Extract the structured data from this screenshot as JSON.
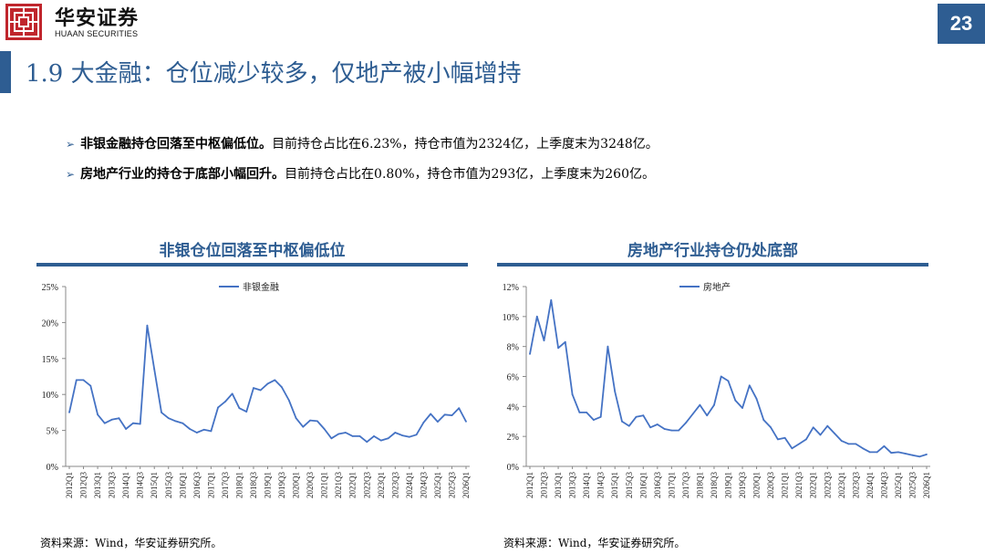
{
  "header": {
    "brand_cn": "华安证券",
    "brand_en": "HUAAN SECURITIES",
    "page_number": "23",
    "brand_color": "#c0262d",
    "accent_color": "#2e5d92"
  },
  "title": "1.9 大金融：仓位减少较多，仅地产被小幅增持",
  "bullets": [
    {
      "bold": "非银金融持仓回落至中枢偏低位。",
      "text": "目前持仓占比在6.23%，持仓市值为2324亿，上季度末为3248亿。"
    },
    {
      "bold": "房地产行业的持仓于底部小幅回升。",
      "text": "目前持仓占比在0.80%，持仓市值为293亿，上季度末为260亿。"
    }
  ],
  "chart_titles": [
    "非银仓位回落至中枢偏低位",
    "房地产行业持仓仍处底部"
  ],
  "sources": [
    "资料来源：Wind，华安证券研究所。",
    "资料来源：Wind，华安证券研究所。"
  ],
  "chart_data": [
    {
      "type": "line",
      "title": "非银仓位回落至中枢偏低位",
      "legend": "top-center",
      "series_color": "#4472c4",
      "xlabel": "",
      "ylabel": "",
      "ylim": [
        0,
        25
      ],
      "y_ticks": [
        0,
        5,
        10,
        15,
        20,
        25
      ],
      "y_tick_labels": [
        "0%",
        "5%",
        "10%",
        "15%",
        "20%",
        "25%"
      ],
      "x_tick_labels": [
        "2012Q1",
        "2012Q3",
        "2013Q1",
        "2013Q3",
        "2014Q1",
        "2014Q3",
        "2015Q1",
        "2015Q3",
        "2016Q1",
        "2016Q3",
        "2017Q1",
        "2017Q3",
        "2018Q1",
        "2018Q3",
        "2019Q1",
        "2019Q3",
        "2020Q1",
        "2020Q3",
        "2021Q1",
        "2021Q3",
        "2022Q1",
        "2022Q3",
        "2023Q1",
        "2023Q3",
        "2024Q1",
        "2024Q3",
        "2025Q1",
        "2025Q3",
        "2026Q1"
      ],
      "series": [
        {
          "name": "非银金融",
          "values": [
            7.5,
            12.0,
            12.0,
            11.2,
            7.2,
            6.0,
            6.5,
            6.7,
            5.2,
            6.0,
            5.9,
            19.6,
            13.5,
            7.5,
            6.7,
            6.3,
            6.0,
            5.2,
            4.7,
            5.1,
            4.9,
            8.2,
            9.0,
            10.1,
            8.1,
            7.6,
            10.9,
            10.6,
            11.5,
            12.0,
            11.0,
            9.2,
            6.7,
            5.5,
            6.4,
            6.3,
            5.2,
            3.9,
            4.5,
            4.7,
            4.2,
            4.2,
            3.4,
            4.2,
            3.6,
            3.9,
            4.7,
            4.3,
            4.1,
            4.4,
            6.1,
            7.3,
            6.2,
            7.2,
            7.1,
            8.1,
            6.23
          ]
        }
      ]
    },
    {
      "type": "line",
      "title": "房地产行业持仓仍处底部",
      "legend": "top-center",
      "series_color": "#4472c4",
      "xlabel": "",
      "ylabel": "",
      "ylim": [
        0,
        12
      ],
      "y_ticks": [
        0,
        2,
        4,
        6,
        8,
        10,
        12
      ],
      "y_tick_labels": [
        "0%",
        "2%",
        "4%",
        "6%",
        "8%",
        "10%",
        "12%"
      ],
      "x_tick_labels": [
        "2012Q1",
        "2012Q3",
        "2013Q1",
        "2013Q3",
        "2014Q1",
        "2014Q3",
        "2015Q1",
        "2015Q3",
        "2016Q1",
        "2016Q3",
        "2017Q1",
        "2017Q3",
        "2018Q1",
        "2018Q3",
        "2019Q1",
        "2019Q3",
        "2020Q1",
        "2020Q3",
        "2021Q1",
        "2021Q3",
        "2022Q1",
        "2022Q3",
        "2023Q1",
        "2023Q3",
        "2024Q1",
        "2024Q3",
        "2025Q1",
        "2025Q3",
        "2026Q1"
      ],
      "series": [
        {
          "name": "房地产",
          "values": [
            7.5,
            10.0,
            8.4,
            11.1,
            7.9,
            8.3,
            4.8,
            3.6,
            3.6,
            3.1,
            3.3,
            8.0,
            5.0,
            3.0,
            2.7,
            3.3,
            3.4,
            2.6,
            2.8,
            2.5,
            2.4,
            2.4,
            2.9,
            3.5,
            4.1,
            3.4,
            4.1,
            6.0,
            5.7,
            4.4,
            3.9,
            5.4,
            4.5,
            3.1,
            2.6,
            1.8,
            1.9,
            1.2,
            1.5,
            1.8,
            2.6,
            2.1,
            2.7,
            2.2,
            1.7,
            1.5,
            1.5,
            1.2,
            0.95,
            0.95,
            1.35,
            0.9,
            0.95,
            0.85,
            0.75,
            0.65,
            0.8
          ]
        }
      ]
    }
  ]
}
